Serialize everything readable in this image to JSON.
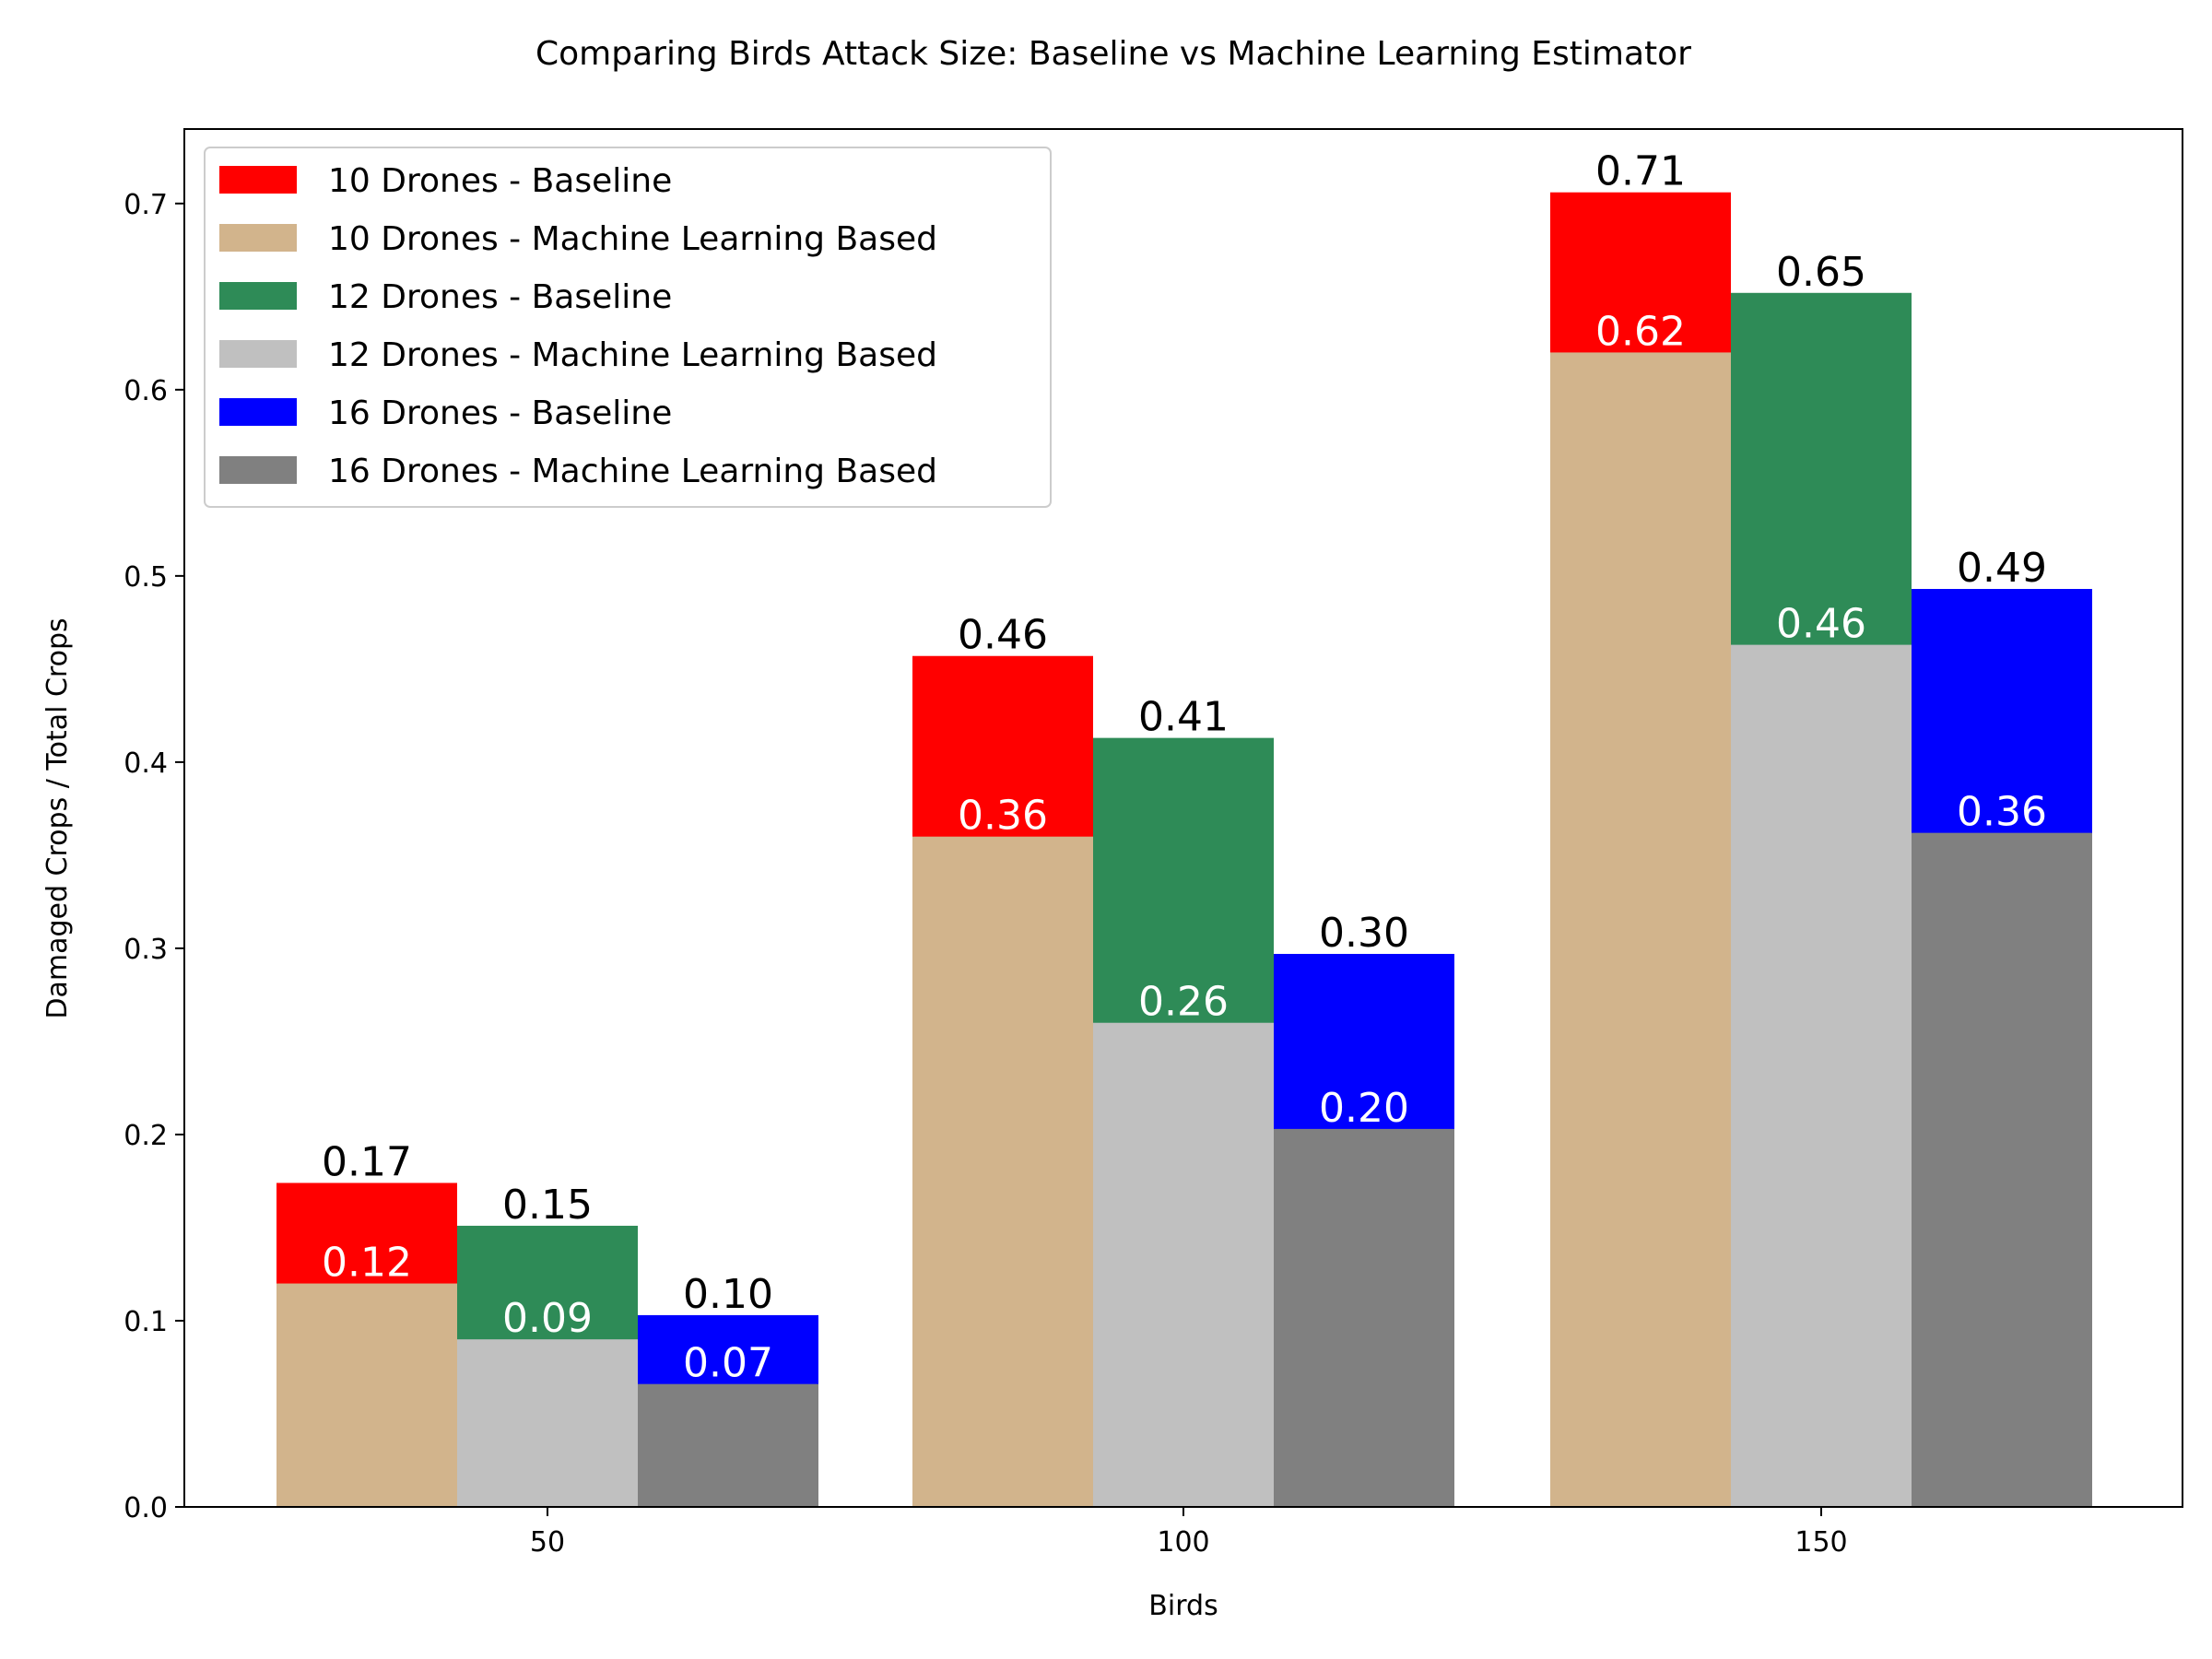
{
  "chart_data": {
    "type": "bar",
    "title": "Comparing Birds Attack Size: Baseline vs Machine Learning Estimator",
    "xlabel": "Birds",
    "ylabel": "Damaged Crops / Total Crops",
    "categories": [
      "50",
      "100",
      "150"
    ],
    "ylim": [
      0,
      0.74
    ],
    "yticks": [
      "0.0",
      "0.1",
      "0.2",
      "0.3",
      "0.4",
      "0.5",
      "0.6",
      "0.7"
    ],
    "grid": false,
    "legend_position": "upper-left",
    "groups": [
      {
        "baseline": {
          "name": "10 Drones - Baseline",
          "color": "#ff0000",
          "values": [
            0.174,
            0.457,
            0.706
          ],
          "labels": [
            "0.17",
            "0.46",
            "0.71"
          ]
        },
        "ml": {
          "name": "10 Drones - Machine Learning Based",
          "color": "#d2b48c",
          "values": [
            0.12,
            0.36,
            0.62
          ],
          "labels": [
            "0.12",
            "0.36",
            "0.62"
          ]
        }
      },
      {
        "baseline": {
          "name": "12 Drones - Baseline",
          "color": "#2e8b57",
          "values": [
            0.151,
            0.413,
            0.652
          ],
          "labels": [
            "0.15",
            "0.41",
            "0.65"
          ]
        },
        "ml": {
          "name": "12 Drones - Machine Learning Based",
          "color": "#c0c0c0",
          "values": [
            0.09,
            0.26,
            0.463
          ],
          "labels": [
            "0.09",
            "0.26",
            "0.46"
          ]
        }
      },
      {
        "baseline": {
          "name": "16 Drones - Baseline",
          "color": "#0000ff",
          "values": [
            0.103,
            0.297,
            0.493
          ],
          "labels": [
            "0.10",
            "0.30",
            "0.49"
          ]
        },
        "ml": {
          "name": "16 Drones - Machine Learning Based",
          "color": "#808080",
          "values": [
            0.066,
            0.203,
            0.362
          ],
          "labels": [
            "0.07",
            "0.20",
            "0.36"
          ]
        }
      }
    ]
  }
}
